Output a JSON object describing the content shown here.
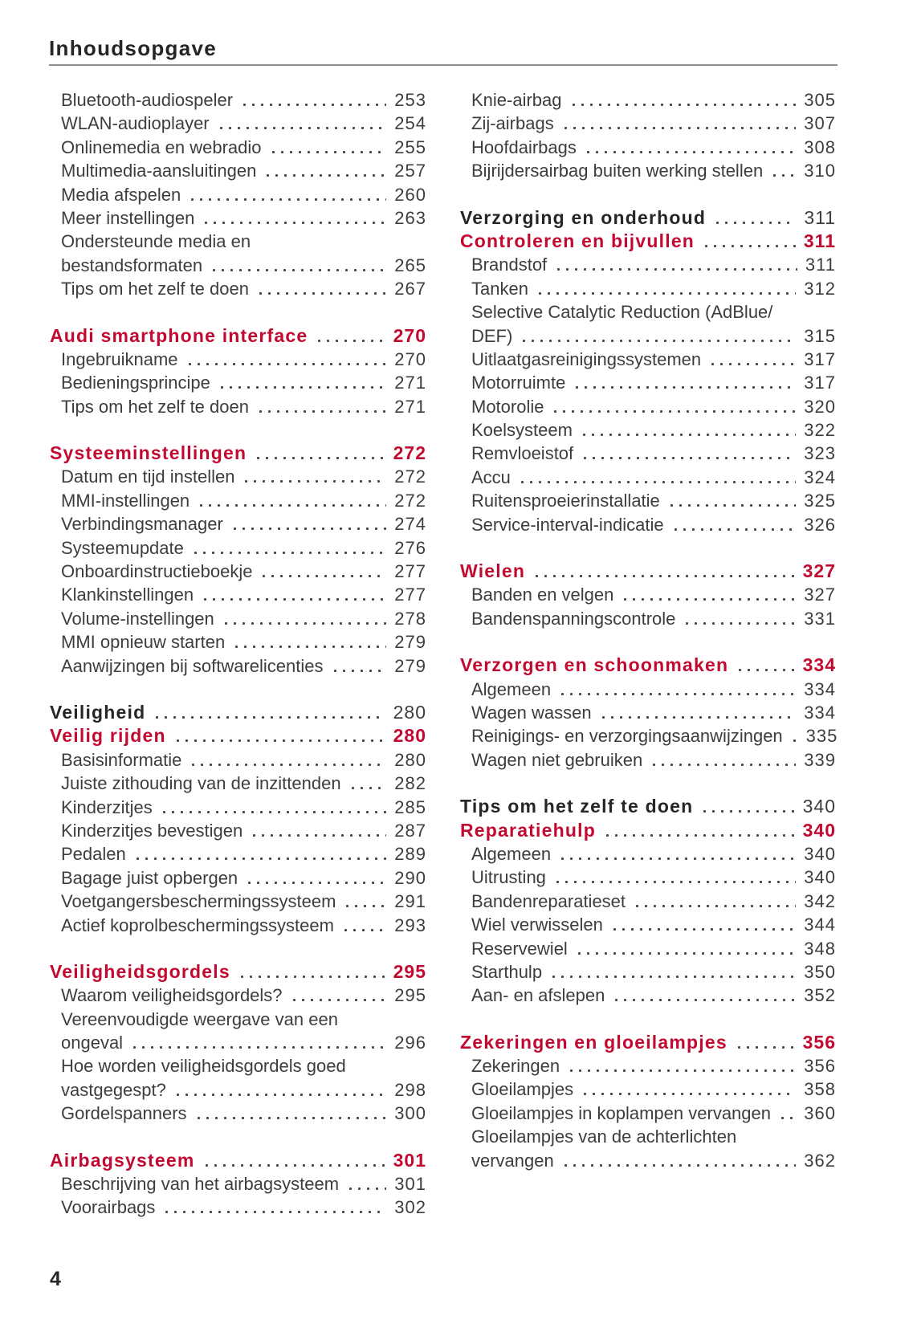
{
  "page": {
    "title": "Inhoudsopgave",
    "page_number": "4",
    "colors": {
      "accent_red": "#c20a31",
      "body_text": "#3d3d3d",
      "heading_black": "#262626",
      "rule_gray": "#909090",
      "dot_gray": "#424242",
      "background": "#ffffff"
    }
  },
  "columns": {
    "left": {
      "groups": [
        {
          "rows": [
            {
              "label": "Bluetooth-audiospeler",
              "page": "253",
              "style": "entry"
            },
            {
              "label": "WLAN-audioplayer",
              "page": "254",
              "style": "entry"
            },
            {
              "label": "Onlinemedia en webradio",
              "page": "255",
              "style": "entry"
            },
            {
              "label": "Multimedia-aansluitingen",
              "page": "257",
              "style": "entry"
            },
            {
              "label": "Media afspelen",
              "page": "260",
              "style": "entry"
            },
            {
              "label": "Meer instellingen",
              "page": "263",
              "style": "entry"
            },
            {
              "label": "Ondersteunde media en",
              "page": "",
              "style": "entry"
            },
            {
              "label": "bestandsformaten",
              "page": "265",
              "style": "entry"
            },
            {
              "label": "Tips om het zelf te doen",
              "page": "267",
              "style": "entry"
            }
          ]
        },
        {
          "rows": [
            {
              "label": "Audi smartphone interface",
              "page": "270",
              "style": "chapter"
            },
            {
              "label": "Ingebruikname",
              "page": "270",
              "style": "entry"
            },
            {
              "label": "Bedieningsprincipe",
              "page": "271",
              "style": "entry"
            },
            {
              "label": "Tips om het zelf te doen",
              "page": "271",
              "style": "entry"
            }
          ]
        },
        {
          "rows": [
            {
              "label": "Systeeminstellingen",
              "page": "272",
              "style": "chapter"
            },
            {
              "label": "Datum en tijd instellen",
              "page": "272",
              "style": "entry"
            },
            {
              "label": "MMI-instellingen",
              "page": "272",
              "style": "entry"
            },
            {
              "label": "Verbindingsmanager",
              "page": "274",
              "style": "entry"
            },
            {
              "label": "Systeemupdate",
              "page": "276",
              "style": "entry"
            },
            {
              "label": "Onboardinstructieboekje",
              "page": "277",
              "style": "entry"
            },
            {
              "label": "Klankinstellingen",
              "page": "277",
              "style": "entry"
            },
            {
              "label": "Volume-instellingen",
              "page": "278",
              "style": "entry"
            },
            {
              "label": "MMI opnieuw starten",
              "page": "279",
              "style": "entry"
            },
            {
              "label": "Aanwijzingen bij softwarelicenties",
              "page": "279",
              "style": "entry"
            }
          ]
        },
        {
          "rows": [
            {
              "label": "Veiligheid",
              "page": "280",
              "style": "part"
            },
            {
              "label": "Veilig rijden",
              "page": "280",
              "style": "chapter"
            },
            {
              "label": "Basisinformatie",
              "page": "280",
              "style": "entry"
            },
            {
              "label": "Juiste zithouding van de inzittenden",
              "page": "282",
              "style": "entry"
            },
            {
              "label": "Kinderzitjes",
              "page": "285",
              "style": "entry"
            },
            {
              "label": "Kinderzitjes bevestigen",
              "page": "287",
              "style": "entry"
            },
            {
              "label": "Pedalen",
              "page": "289",
              "style": "entry"
            },
            {
              "label": "Bagage juist opbergen",
              "page": "290",
              "style": "entry"
            },
            {
              "label": "Voetgangersbeschermingssysteem",
              "page": "291",
              "style": "entry"
            },
            {
              "label": "Actief koprolbeschermingssysteem",
              "page": "293",
              "style": "entry"
            }
          ]
        },
        {
          "rows": [
            {
              "label": "Veiligheidsgordels",
              "page": "295",
              "style": "chapter"
            },
            {
              "label": "Waarom veiligheidsgordels?",
              "page": "295",
              "style": "entry"
            },
            {
              "label": "Vereenvoudigde weergave van een",
              "page": "",
              "style": "entry"
            },
            {
              "label": "ongeval",
              "page": "296",
              "style": "entry"
            },
            {
              "label": "Hoe worden veiligheidsgordels goed",
              "page": "",
              "style": "entry"
            },
            {
              "label": "vastgegespt?",
              "page": "298",
              "style": "entry"
            },
            {
              "label": "Gordelspanners",
              "page": "300",
              "style": "entry"
            }
          ]
        },
        {
          "rows": [
            {
              "label": "Airbagsysteem",
              "page": "301",
              "style": "chapter"
            },
            {
              "label": "Beschrijving van het airbagsysteem",
              "page": "301",
              "style": "entry"
            },
            {
              "label": "Voorairbags",
              "page": "302",
              "style": "entry"
            }
          ]
        }
      ]
    },
    "right": {
      "groups": [
        {
          "rows": [
            {
              "label": "Knie-airbag",
              "page": "305",
              "style": "entry"
            },
            {
              "label": "Zij-airbags",
              "page": "307",
              "style": "entry"
            },
            {
              "label": "Hoofdairbags",
              "page": "308",
              "style": "entry"
            },
            {
              "label": "Bijrijdersairbag buiten werking stellen",
              "page": "310",
              "style": "entry"
            }
          ]
        },
        {
          "rows": [
            {
              "label": "Verzorging en onderhoud",
              "page": "311",
              "style": "part"
            },
            {
              "label": "Controleren en bijvullen",
              "page": "311",
              "style": "chapter"
            },
            {
              "label": "Brandstof",
              "page": "311",
              "style": "entry"
            },
            {
              "label": "Tanken",
              "page": "312",
              "style": "entry"
            },
            {
              "label": "Selective Catalytic Reduction (AdBlue/",
              "page": "",
              "style": "entry"
            },
            {
              "label": "DEF)",
              "page": "315",
              "style": "entry"
            },
            {
              "label": "Uitlaatgasreinigingssystemen",
              "page": "317",
              "style": "entry"
            },
            {
              "label": "Motorruimte",
              "page": "317",
              "style": "entry"
            },
            {
              "label": "Motorolie",
              "page": "320",
              "style": "entry"
            },
            {
              "label": "Koelsysteem",
              "page": "322",
              "style": "entry"
            },
            {
              "label": "Remvloeistof",
              "page": "323",
              "style": "entry"
            },
            {
              "label": "Accu",
              "page": "324",
              "style": "entry"
            },
            {
              "label": "Ruitensproeierinstallatie",
              "page": "325",
              "style": "entry"
            },
            {
              "label": "Service-interval-indicatie",
              "page": "326",
              "style": "entry"
            }
          ]
        },
        {
          "rows": [
            {
              "label": "Wielen",
              "page": "327",
              "style": "chapter"
            },
            {
              "label": "Banden en velgen",
              "page": "327",
              "style": "entry"
            },
            {
              "label": "Bandenspanningscontrole",
              "page": "331",
              "style": "entry"
            }
          ]
        },
        {
          "rows": [
            {
              "label": "Verzorgen en schoonmaken",
              "page": "334",
              "style": "chapter"
            },
            {
              "label": "Algemeen",
              "page": "334",
              "style": "entry"
            },
            {
              "label": "Wagen wassen",
              "page": "334",
              "style": "entry"
            },
            {
              "label": "Reinigings- en verzorgingsaanwijzingen",
              "page": "335",
              "style": "entry"
            },
            {
              "label": "Wagen niet gebruiken",
              "page": "339",
              "style": "entry"
            }
          ]
        },
        {
          "rows": [
            {
              "label": "Tips om het zelf te doen",
              "page": "340",
              "style": "part"
            },
            {
              "label": "Reparatiehulp",
              "page": "340",
              "style": "chapter"
            },
            {
              "label": "Algemeen",
              "page": "340",
              "style": "entry"
            },
            {
              "label": "Uitrusting",
              "page": "340",
              "style": "entry"
            },
            {
              "label": "Bandenreparatieset",
              "page": "342",
              "style": "entry"
            },
            {
              "label": "Wiel verwisselen",
              "page": "344",
              "style": "entry"
            },
            {
              "label": "Reservewiel",
              "page": "348",
              "style": "entry"
            },
            {
              "label": "Starthulp",
              "page": "350",
              "style": "entry"
            },
            {
              "label": "Aan- en afslepen",
              "page": "352",
              "style": "entry"
            }
          ]
        },
        {
          "rows": [
            {
              "label": "Zekeringen en gloeilampjes",
              "page": "356",
              "style": "chapter"
            },
            {
              "label": "Zekeringen",
              "page": "356",
              "style": "entry"
            },
            {
              "label": "Gloeilampjes",
              "page": "358",
              "style": "entry"
            },
            {
              "label": "Gloeilampjes in koplampen vervangen",
              "page": "360",
              "style": "entry"
            },
            {
              "label": "Gloeilampjes van de achterlichten",
              "page": "",
              "style": "entry"
            },
            {
              "label": "vervangen",
              "page": "362",
              "style": "entry"
            }
          ]
        }
      ]
    }
  }
}
